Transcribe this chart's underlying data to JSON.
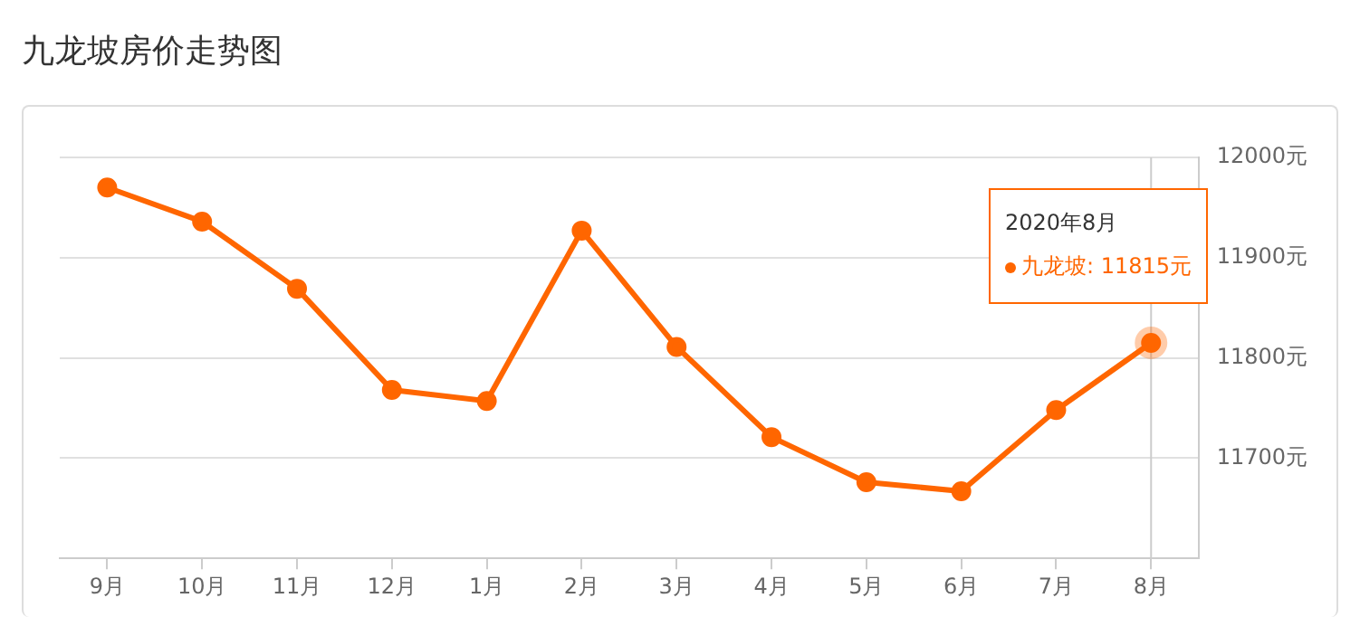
{
  "chart_data": {
    "type": "line",
    "title": "九龙坡房价走势图",
    "categories": [
      "9月",
      "10月",
      "11月",
      "12月",
      "1月",
      "2月",
      "3月",
      "4月",
      "5月",
      "6月",
      "7月",
      "8月"
    ],
    "series": [
      {
        "color": "#ff6600",
        "values": [
          11970,
          11936,
          11869,
          11768,
          11757,
          11927,
          11811,
          11721,
          11676,
          11667,
          11748,
          11815
        ]
      }
    ],
    "ylim": [
      11600,
      12000
    ],
    "yticks": [
      {
        "value": 11700,
        "label": "11700元"
      },
      {
        "value": 11800,
        "label": "11800元"
      },
      {
        "value": 11900,
        "label": "11900元"
      },
      {
        "value": 12000,
        "label": "12000元"
      }
    ],
    "grid": "y",
    "legend": false,
    "marker": "circle",
    "line_style": "solid",
    "ref_lines": [
      {
        "axis": "x",
        "value": "8月",
        "color": "#cccccc"
      }
    ],
    "annotations": [
      "2020年8月",
      "九龙坡:  11815元"
    ]
  }
}
